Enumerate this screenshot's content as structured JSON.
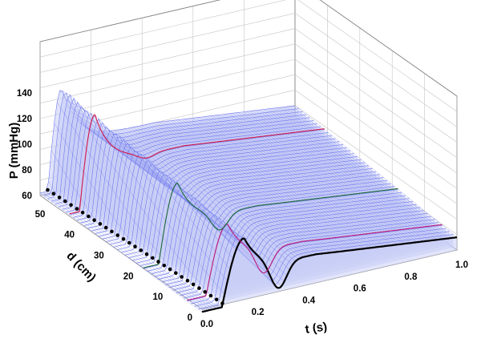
{
  "chart_data": {
    "type": "surface",
    "xlabel": "t (s)",
    "ylabel": "d (cm)",
    "zlabel": "P (mmHg)",
    "xlim": [
      0,
      1.0
    ],
    "ylim": [
      0,
      55
    ],
    "zlim": [
      60,
      140
    ],
    "x_ticks": [
      "0.0",
      "0.2",
      "0.4",
      "0.6",
      "0.8",
      "1.0"
    ],
    "y_ticks": [
      "0",
      "10",
      "20",
      "30",
      "40",
      "50"
    ],
    "z_ticks": [
      "60",
      "80",
      "100",
      "120",
      "140"
    ],
    "wall_z_ticks": [
      "60",
      "80",
      "100",
      "120",
      "140"
    ],
    "colors": {
      "mesh": "#6f79ee",
      "mesh_fill": "#c9cdf6",
      "highlight_lines": [
        "#c0187a",
        "#1d6b3a",
        "#d4184a"
      ],
      "marker": "#000000"
    },
    "highlight_depths_cm": [
      5,
      20,
      45
    ],
    "surface_samples": {
      "t": [
        0.0,
        0.05,
        0.1,
        0.15,
        0.2,
        0.3,
        0.4,
        0.6,
        0.8,
        1.0
      ],
      "d": [
        0,
        25,
        50
      ],
      "P": [
        [
          56,
          58,
          90,
          118,
          110,
          62,
          74,
          70,
          66,
          60
        ],
        [
          58,
          62,
          110,
          124,
          100,
          84,
          82,
          78,
          72,
          64
        ],
        [
          60,
          85,
          135,
          116,
          100,
          96,
          94,
          90,
          82,
          68
        ]
      ]
    }
  }
}
